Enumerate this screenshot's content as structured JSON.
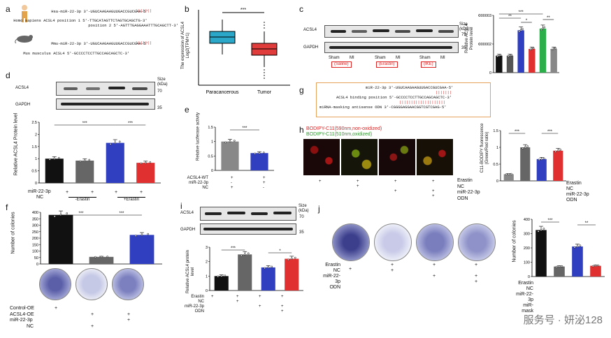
{
  "panels": {
    "a": {
      "label": "a",
      "hsa_name": "Hsa-miR-22-3p",
      "hsa_seq": "3'-UGUCAAGAAGUUGACCGUCGAA-5'",
      "human_gene": "Homo sapiens ACSL4",
      "human_pos1": "position 1 5'-TTGCATAGTTCTAGTGCAGCTG-3'",
      "human_pos2": "position 2 5'-AGTTTGAGGAAATTTGCAGCTT-3'",
      "mmu_name": "Mmu-miR-22-3p",
      "mmu_seq": "3'-UGUCAAGAAGUUGACCGUCGAA-5'",
      "mouse_gene": "Mus musculus ACSL4",
      "mouse_seq": "5'-GCCCCTCCTTGCCAGCAGCTC-3'"
    },
    "b": {
      "label": "b",
      "ylabel": "The expression of ACSL4",
      "ylabel2": "Log2(TPM+1)",
      "categories": [
        "Paracancerous",
        "Tumor"
      ],
      "sig": "***"
    },
    "c": {
      "label": "c",
      "acsl4": "ACSL4",
      "gapdh": "GAPDH",
      "size_label": "Size",
      "size_unit": "(kDa)",
      "kda1": "79",
      "kda2": "35",
      "lanes": [
        "Sham",
        "MI",
        "Sham",
        "MI",
        "Sham",
        "MI"
      ],
      "groups": [
        "(Saline)",
        "(Erastin)",
        "(IKE)"
      ],
      "ylabel": "Relative ACSL4 Protein level",
      "sigs": [
        "***",
        "**",
        "*",
        "**"
      ]
    },
    "d": {
      "label": "d",
      "acsl4": "ACSL4",
      "gapdh": "GAPDH",
      "size_label": "Size",
      "size_unit": "(kDa)",
      "kda1": "70",
      "kda2": "35",
      "ylabel": "Relative ACSL4 Protein level",
      "row1_label": "miR-22-3p",
      "row2_label": "NC",
      "group1": "-Erastin",
      "group2": "+Erastin",
      "sigs": [
        "***",
        "***"
      ]
    },
    "e": {
      "label": "e",
      "ylabel": "Relative luciferase activity",
      "rows": [
        "ACSL4-WT",
        "miR-22-3p",
        "NC"
      ],
      "sig": "***"
    },
    "f": {
      "label": "f",
      "ylabel": "Number of colonies",
      "rows": [
        "Control-OE",
        "ACSL4-OE",
        "miR-22-3p",
        "NC"
      ],
      "sigs": [
        "***",
        "***"
      ]
    },
    "g": {
      "label": "g",
      "line1_name": "miR-22-3p",
      "line1_seq": "3'-UGUCAAGAAGUUGACCGUCGAA-5'",
      "line2_name": "ACSL4 binding position",
      "line2_seq": "5'-GCCCCTCCTTGCCAGCAGCTC-3'",
      "line3_name": "miRNA-masking antisense ODN",
      "line3_seq": "3'-CGGGGAGGAACGGTCGTCGAG-5'"
    },
    "h": {
      "label": "h",
      "legend_red": "BODIPY-C11(590nm,non-oxidized)",
      "legend_green": "BODIPY-C11(510nm,oxidized)",
      "rows": [
        "Erastin",
        "NC",
        "miR-22-3p",
        "ODN"
      ],
      "ylabel": "C11-BODIPY fluorescence",
      "ylabel2": "(Green/Red ratio)",
      "sigs": [
        "***",
        "***"
      ]
    },
    "i": {
      "label": "i",
      "acsl4": "ACSL4",
      "gapdh": "GAPDH",
      "size_label": "Size",
      "size_unit": "(kDa)",
      "kda1": "70",
      "kda2": "35",
      "ylabel": "Relative ACSL4 protein level",
      "rows": [
        "Erastin",
        "NC",
        "miR-22-3p",
        "ODN"
      ],
      "sigs": [
        "***",
        "*"
      ]
    },
    "j": {
      "label": "j",
      "rows_left": [
        "Erastin",
        "NC",
        "miR-22-3p",
        "ODN"
      ],
      "ylabel": "Number of colonies",
      "rows_right": [
        "Erastin",
        "NC",
        "miR-22-3p",
        "miR-mask"
      ],
      "sigs": [
        "***",
        "**"
      ]
    }
  },
  "watermark": "服务号 · 妍泌128",
  "chart_data": [
    {
      "id": "b",
      "type": "box",
      "categories": [
        "Paracancerous",
        "Tumor"
      ],
      "median": [
        6.5,
        5.3
      ],
      "q1": [
        6.2,
        5.0
      ],
      "q3": [
        6.8,
        5.6
      ],
      "ylabel": "The expression of ACSL4 Log2(TPM+1)"
    },
    {
      "id": "c",
      "type": "bar",
      "categories": [
        "Sham",
        "MI",
        "Sham",
        "MI",
        "Sham",
        "MI"
      ],
      "values": [
        1.0,
        1.0,
        2.5,
        1.4,
        2.6,
        1.4
      ],
      "colors": [
        "#111111",
        "#555555",
        "#2f3fbf",
        "#e03030",
        "#2cae4a",
        "#888888"
      ]
    },
    {
      "id": "d",
      "type": "bar",
      "categories": [
        "1",
        "2",
        "3",
        "4"
      ],
      "values": [
        1.0,
        0.92,
        1.65,
        0.83
      ],
      "colors": [
        "#111111",
        "#666666",
        "#2f3fbf",
        "#e03030"
      ],
      "ylim": [
        0,
        2.5
      ],
      "yticks": [
        0,
        0.5,
        1.0,
        1.5,
        2.0,
        2.5
      ]
    },
    {
      "id": "e",
      "type": "bar",
      "categories": [
        "NC",
        "miR-22-3p"
      ],
      "values": [
        1.0,
        0.6
      ],
      "colors": [
        "#888888",
        "#2f3fbf"
      ],
      "ylim": [
        0,
        1.5
      ],
      "yticks": [
        0.0,
        0.5,
        1.0,
        1.5
      ]
    },
    {
      "id": "f",
      "type": "bar",
      "categories": [
        "Control-OE",
        "ACSL4-OE",
        "miR-22-3p"
      ],
      "values": [
        380,
        55,
        225
      ],
      "colors": [
        "#111111",
        "#666666",
        "#2f3fbf"
      ],
      "ylim": [
        0,
        400
      ],
      "yticks": [
        0,
        50,
        100,
        150,
        200,
        250,
        300,
        350,
        400
      ]
    },
    {
      "id": "h",
      "type": "bar",
      "categories": [
        "1",
        "2",
        "3",
        "4"
      ],
      "values": [
        0.2,
        1.0,
        0.65,
        0.9
      ],
      "colors": [
        "#888888",
        "#666666",
        "#2f3fbf",
        "#e03030"
      ],
      "ylim": [
        0,
        1.5
      ],
      "yticks": [
        0.0,
        0.5,
        1.0,
        1.5
      ]
    },
    {
      "id": "i",
      "type": "bar",
      "categories": [
        "1",
        "2",
        "3",
        "4"
      ],
      "values": [
        1.0,
        2.5,
        1.6,
        2.2
      ],
      "colors": [
        "#111111",
        "#666666",
        "#2f3fbf",
        "#e03030"
      ],
      "ylim": [
        0,
        3
      ],
      "yticks": [
        0,
        1,
        2,
        3
      ]
    },
    {
      "id": "j",
      "type": "bar",
      "categories": [
        "1",
        "2",
        "3",
        "4"
      ],
      "values": [
        325,
        70,
        210,
        75
      ],
      "colors": [
        "#111111",
        "#666666",
        "#2f3fbf",
        "#e03030"
      ],
      "ylim": [
        0,
        400
      ],
      "yticks": [
        0,
        100,
        200,
        300,
        400
      ]
    }
  ]
}
